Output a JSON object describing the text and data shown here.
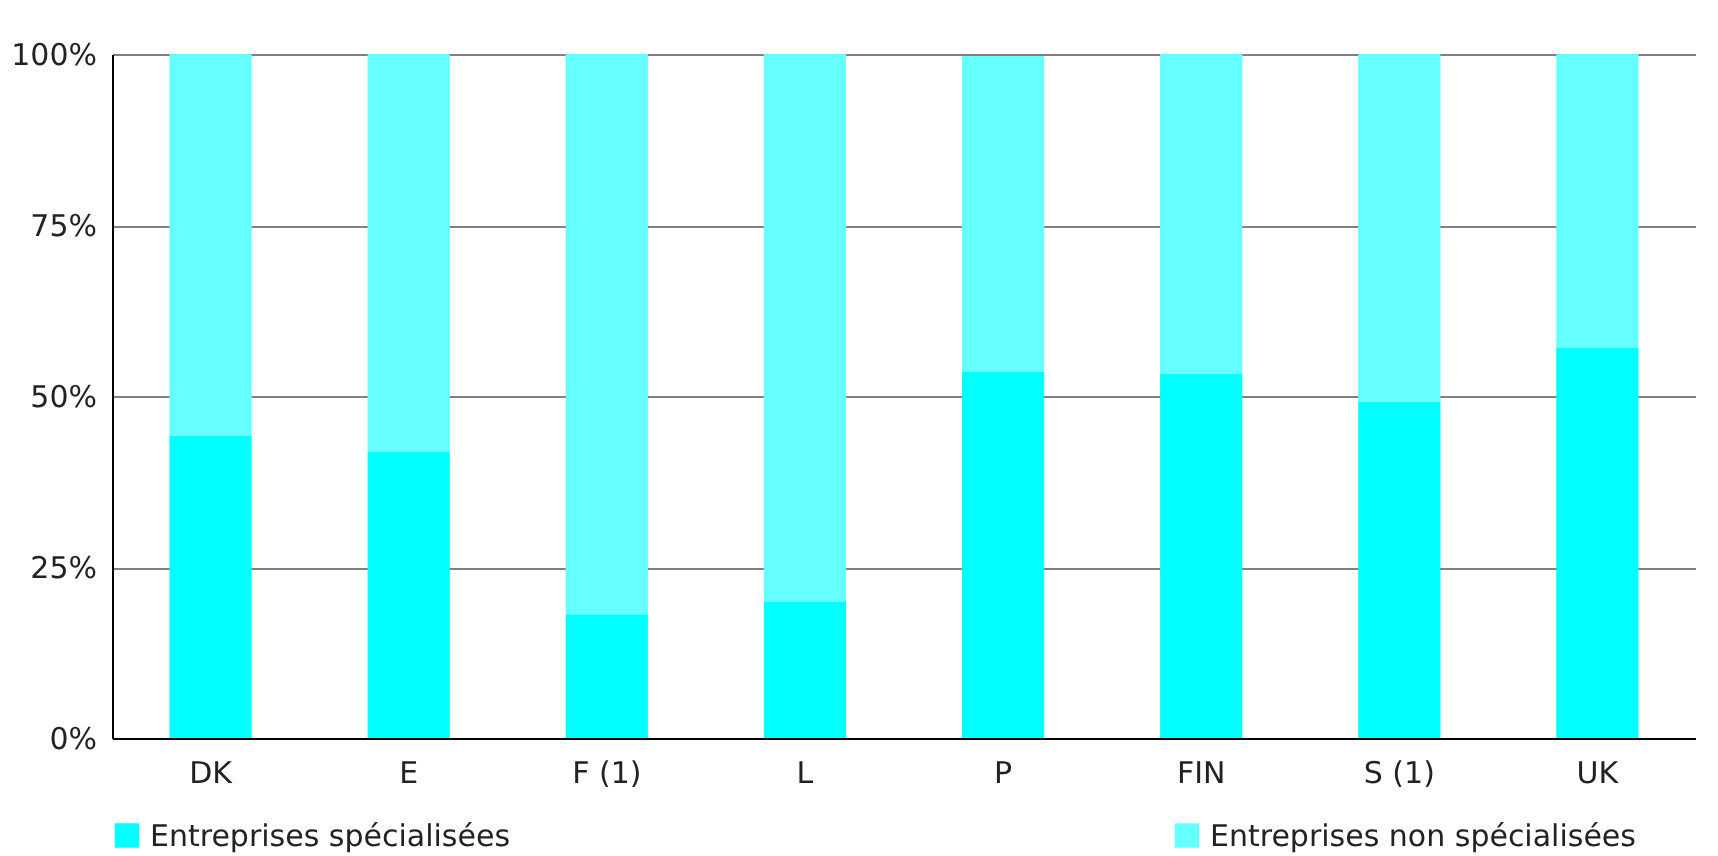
{
  "chart_data": {
    "type": "bar",
    "stacked": true,
    "categories": [
      "DK",
      "E",
      "F (1)",
      "L",
      "P",
      "FIN",
      "S (1)",
      "UK"
    ],
    "series": [
      {
        "name": "Entreprises spécialisées",
        "color": "#00ffff",
        "values": [
          44.2,
          41.9,
          18.1,
          19.9,
          53.6,
          53.3,
          49.2,
          57.1
        ]
      },
      {
        "name": "Entreprises non spécialisées",
        "color": "#66ffff",
        "values": [
          55.8,
          58.1,
          81.9,
          80.1,
          46.1,
          46.7,
          50.8,
          42.9
        ]
      }
    ],
    "ylim": [
      0,
      100
    ],
    "yticks": [
      {
        "value": 0,
        "label": "0%"
      },
      {
        "value": 25,
        "label": "25%"
      },
      {
        "value": 50,
        "label": "50%"
      },
      {
        "value": 75,
        "label": "75%"
      },
      {
        "value": 100,
        "label": "100%"
      }
    ],
    "grid": "y",
    "legend": "bottom"
  }
}
